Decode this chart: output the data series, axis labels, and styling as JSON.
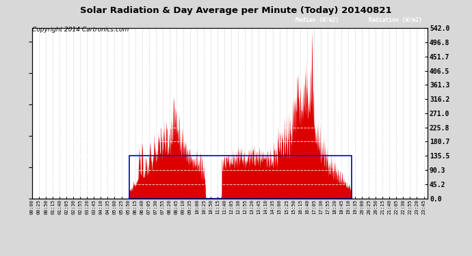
{
  "title": "Solar Radiation & Day Average per Minute (Today) 20140821",
  "copyright": "Copyright 2014 Cartronics.com",
  "legend_median": "Median (W/m2)",
  "legend_radiation": "Radiation (W/m2)",
  "ymax": 542.0,
  "yticks": [
    0.0,
    45.2,
    90.3,
    135.5,
    180.7,
    225.8,
    271.0,
    316.2,
    361.3,
    406.5,
    451.7,
    496.8,
    542.0
  ],
  "bg_color": "#d8d8d8",
  "plot_bg_color": "#ffffff",
  "radiation_color": "#dd0000",
  "median_color": "#0000cc",
  "grid_color": "#bbbbbb",
  "total_minutes": 1440,
  "sunrise_minute": 353,
  "sunset_minute": 1163,
  "median_value": 135.5
}
